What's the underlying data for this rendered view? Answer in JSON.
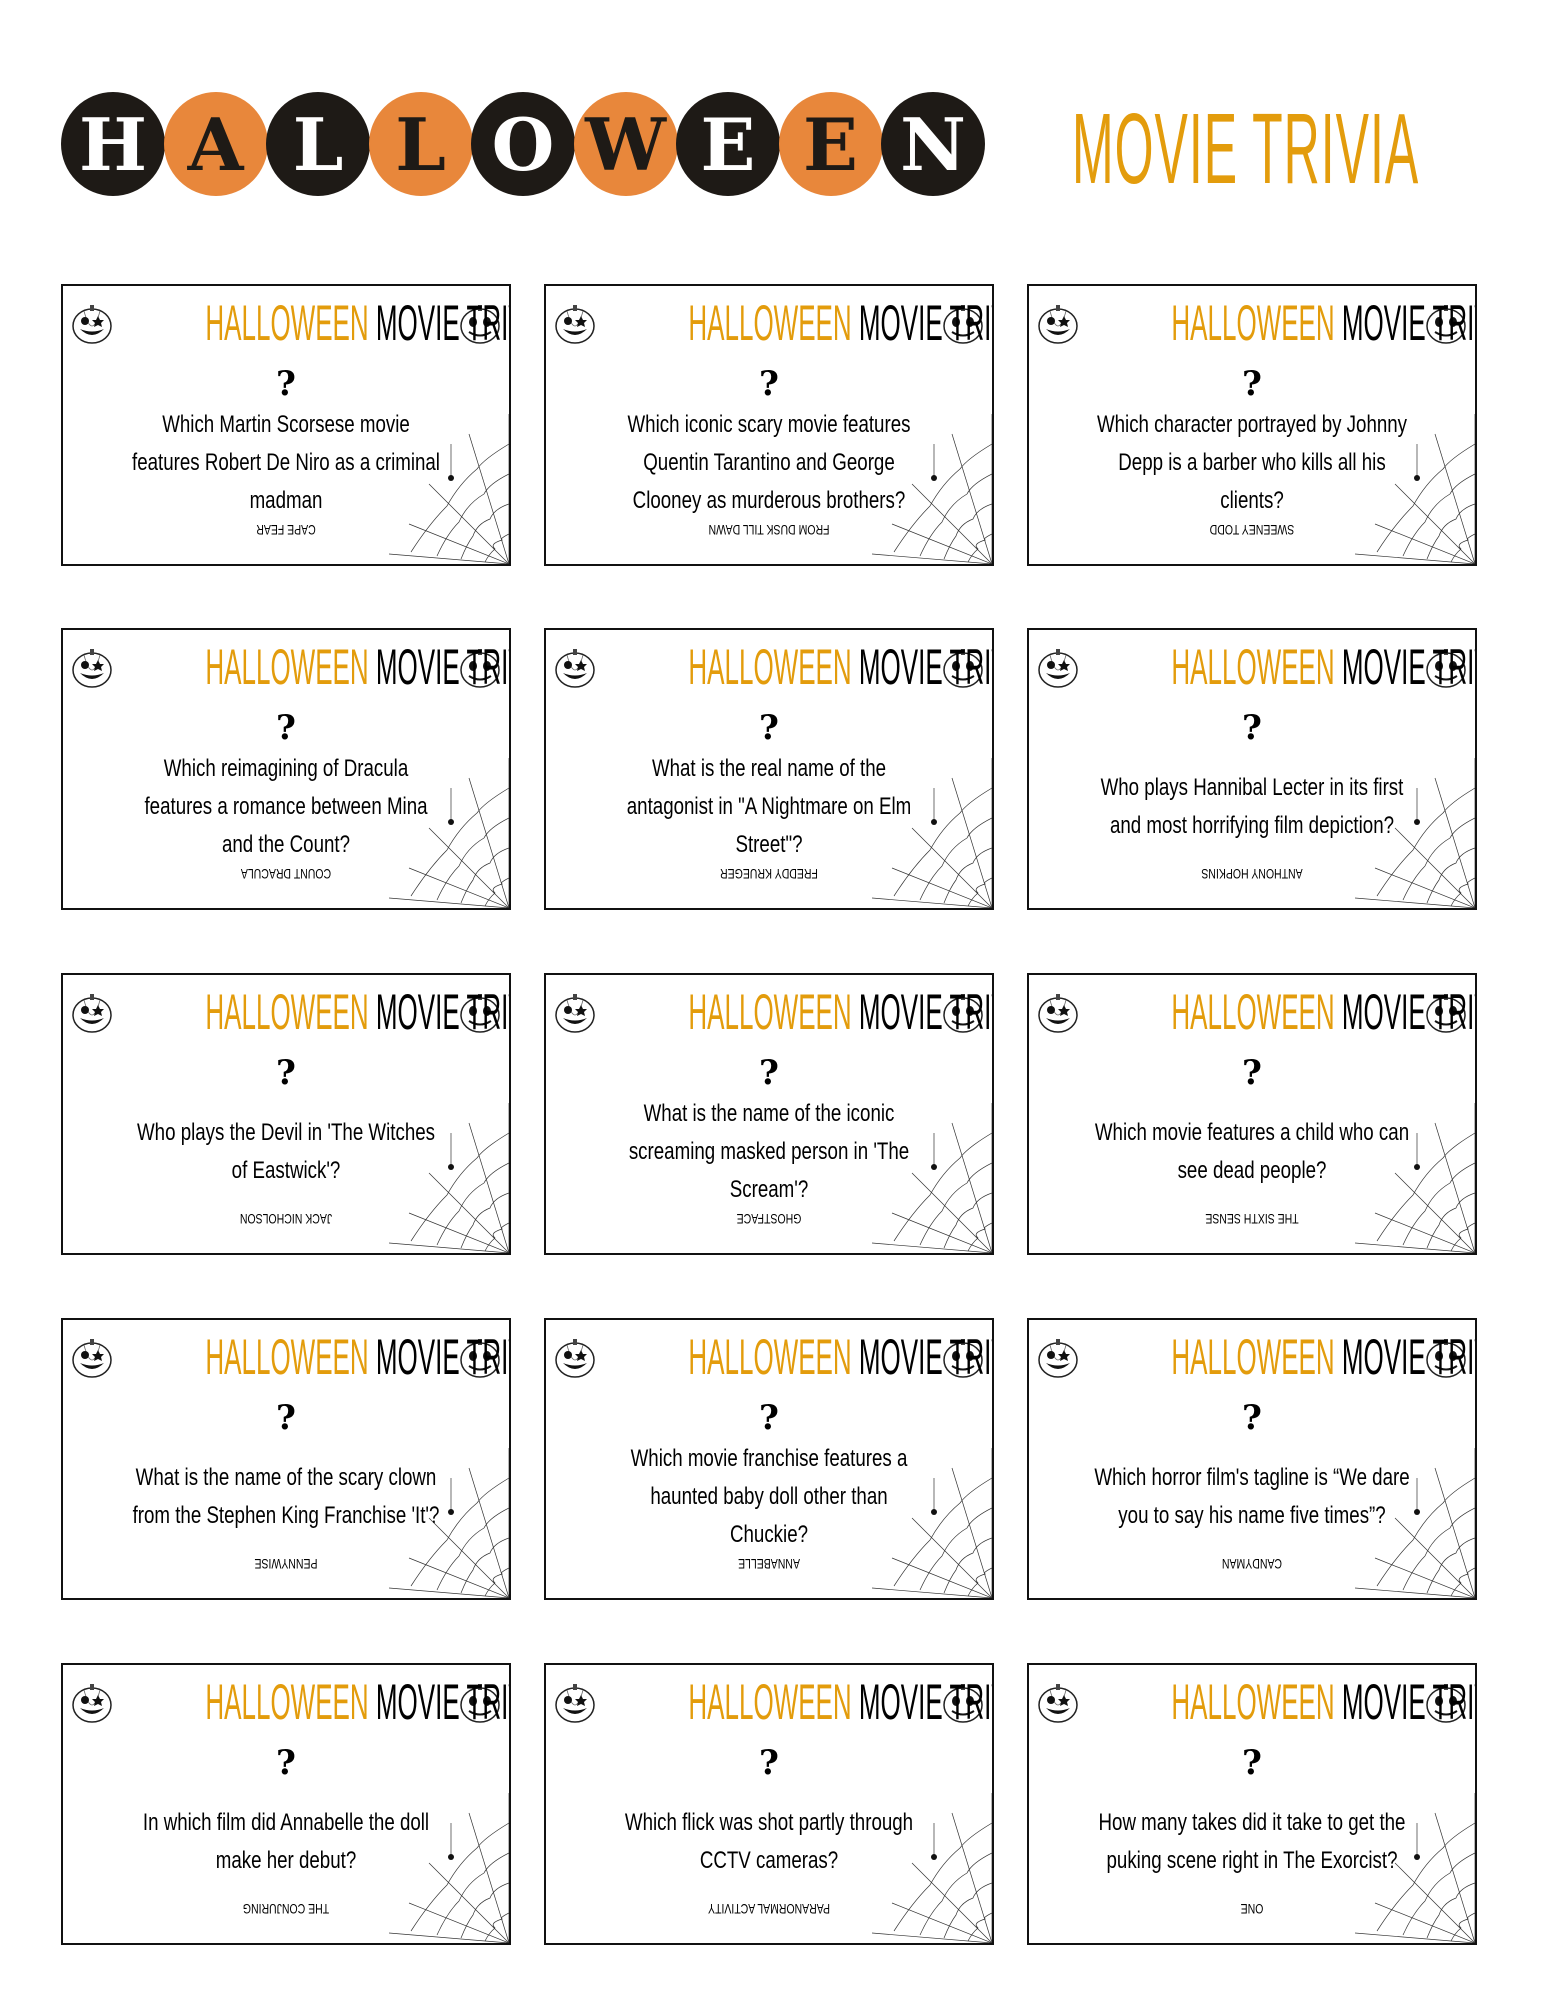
{
  "header": {
    "banner_letters": [
      "H",
      "A",
      "L",
      "L",
      "O",
      "W",
      "E",
      "E",
      "N"
    ],
    "subtitle": "MOVIE TRIVIA",
    "colors": {
      "dark": "#1e1a16",
      "orange": "#e8873b",
      "gold": "#e39c0c"
    }
  },
  "card_header": {
    "orange_word": "HALLOWEEN",
    "dark_words": "MOVIE TRIVIA",
    "icon": "jack-o-lantern-icon",
    "corner": "spider-web-icon"
  },
  "question_mark": "?",
  "cards": [
    {
      "question": "Which Martin Scorsese movie features Robert De Niro as a criminal madman",
      "answer": "CAPE FEAR"
    },
    {
      "question": "Which iconic scary movie features Quentin Tarantino and George Clooney as murderous brothers?",
      "answer": "FROM DUSK TILL DAWN"
    },
    {
      "question": "Which character portrayed by Johnny Depp is a barber who kills all his clients?",
      "answer": "SWEENEY TODD"
    },
    {
      "question": "Which reimagining of Dracula features a romance between Mina and the Count?",
      "answer": "COUNT DRACULA"
    },
    {
      "question": "What is the real name of the antagonist in \"A Nightmare on Elm Street\"?",
      "answer": "FREDDY KRUEGER"
    },
    {
      "question": "Who plays Hannibal Lecter in its first and most horrifying film depiction?",
      "answer": "ANTHONY HOPKINS"
    },
    {
      "question": "Who plays the Devil in 'The Witches of Eastwick'?",
      "answer": "JACK NICHOLSON"
    },
    {
      "question": "What is the name of the iconic screaming masked person in 'The Scream'?",
      "answer": "GHOSTFACE"
    },
    {
      "question": "Which movie features a child who can see dead people?",
      "answer": "THE SIXTH SENSE"
    },
    {
      "question": "What is the name of the scary clown from the Stephen King Franchise 'It'?",
      "answer": "PENNYWISE"
    },
    {
      "question": "Which movie franchise features a haunted baby doll other than Chuckie?",
      "answer": "ANNABELLE"
    },
    {
      "question": "Which horror film's tagline is “We dare you to say his name five times”?",
      "answer": "CANDYMAN"
    },
    {
      "question": "In which film did Annabelle the doll make her debut?",
      "answer": "THE CONJURING"
    },
    {
      "question": "Which flick was shot partly through CCTV cameras?",
      "answer": "PARANORMAL ACTIVITY"
    },
    {
      "question": "How many takes did it take to get the puking scene right in The Exorcist?",
      "answer": "ONE"
    }
  ]
}
